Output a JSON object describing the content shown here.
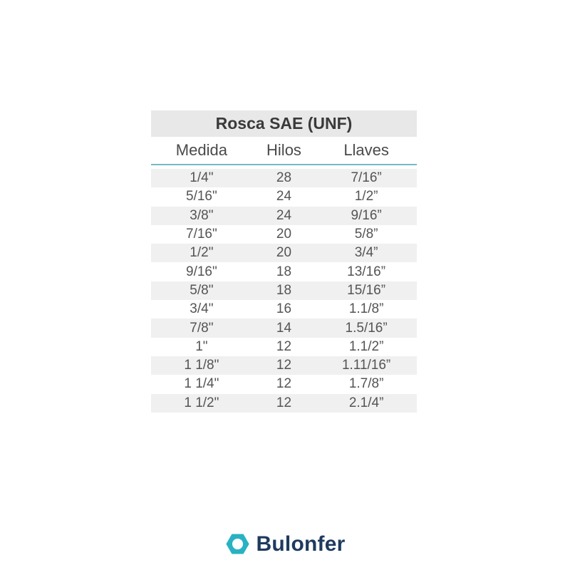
{
  "chart_data": {
    "type": "table",
    "title": "Rosca SAE (UNF)",
    "columns": [
      "Medida",
      "Hilos",
      "Llaves"
    ],
    "rows": [
      [
        "1/4\"",
        "28",
        "7/16”"
      ],
      [
        "5/16\"",
        "24",
        "1/2”"
      ],
      [
        "3/8\"",
        "24",
        "9/16”"
      ],
      [
        "7/16\"",
        "20",
        "5/8”"
      ],
      [
        "1/2\"",
        "20",
        "3/4”"
      ],
      [
        "9/16\"",
        "18",
        "13/16”"
      ],
      [
        "5/8\"",
        "18",
        "15/16”"
      ],
      [
        "3/4\"",
        "16",
        "1.1/8”"
      ],
      [
        "7/8\"",
        "14",
        "1.5/16”"
      ],
      [
        "1\"",
        "12",
        "1.1/2”"
      ],
      [
        "1 1/8\"",
        "12",
        "1.11/16”"
      ],
      [
        "1 1/4\"",
        "12",
        "1.7/8”"
      ],
      [
        "1 1/2\"",
        "12",
        "2.1/4”"
      ]
    ],
    "layout": {
      "header_rule_color": "#74bac6",
      "stripe_rows": "odd",
      "legend": "none",
      "grid": "off"
    }
  },
  "footer": {
    "brand": "Bulonfer"
  },
  "colors": {
    "title_bg": "#e8e8e8",
    "row_stripe": "#f0f0f0",
    "title_text": "#3a3a3a",
    "header_text": "#4a4a4a",
    "cell_text": "#545454",
    "accent_teal_line": "#74bac6",
    "logo_teal": "#29b2c3",
    "logo_navy": "#1e3a5f",
    "page_bg": "#ffffff"
  }
}
